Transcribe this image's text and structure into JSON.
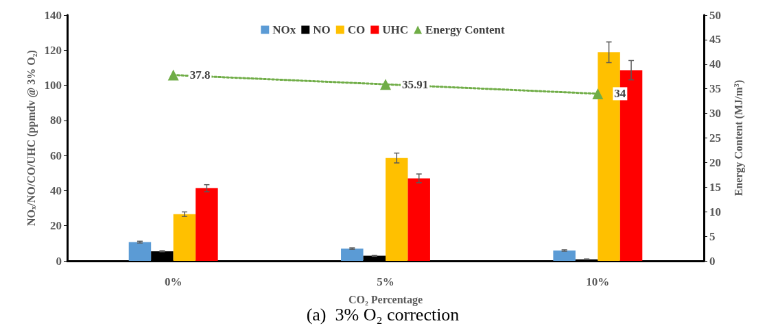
{
  "chart_data": {
    "type": "bar",
    "categories": [
      "0%",
      "5%",
      "10%"
    ],
    "xlabel": "CO₂ Percentage",
    "ylabel": "NO$_{x}$/NO/CO/UHC (ppmdv @ 3% O₂)",
    "y2label": "Energy Content (MJ/m$^{3}$)",
    "ylim": [
      0,
      140
    ],
    "yticks": [
      0,
      20,
      40,
      60,
      80,
      100,
      120,
      140
    ],
    "y2lim": [
      0,
      50
    ],
    "y2ticks": [
      0,
      5,
      10,
      15,
      20,
      25,
      30,
      35,
      40,
      45,
      50
    ],
    "grid": false,
    "legend": "top",
    "annotations": [
      "(a)  3% O₂ correction"
    ],
    "series": [
      {
        "name": "NOx",
        "color": "#5b9bd5",
        "values": [
          10.7,
          7,
          5.9
        ],
        "errors": [
          0.5,
          0.4,
          0.4
        ]
      },
      {
        "name": "NO",
        "color": "#000000",
        "values": [
          5.5,
          2.9,
          0.9
        ],
        "errors": [
          0.3,
          0.3,
          0.2
        ]
      },
      {
        "name": "CO",
        "color": "#ffc000",
        "values": [
          26.6,
          58.6,
          118.8
        ],
        "errors": [
          1.3,
          2.8,
          5.9
        ]
      },
      {
        "name": "UHC",
        "color": "#ff0000",
        "values": [
          41.4,
          47,
          108.6
        ],
        "errors": [
          2,
          2.5,
          5.5
        ]
      },
      {
        "name": "Energy Content",
        "type": "line",
        "axis": "y2",
        "color": "#70ad47",
        "values": [
          37.8,
          35.91,
          34
        ],
        "marker": "triangle",
        "line_style": "dotted",
        "value_labels": [
          "37.8",
          "35.91",
          "34"
        ]
      }
    ]
  }
}
